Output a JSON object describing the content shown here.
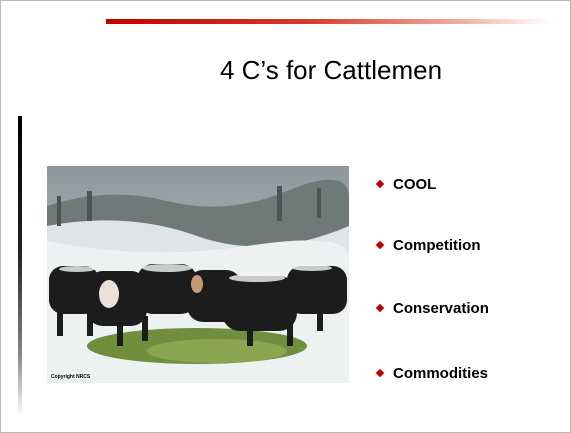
{
  "slide": {
    "title": "4 C’s for Cattlemen",
    "image_caption": "Copyright NRCS",
    "bullets": [
      "COOL",
      "Competition",
      "Conservation",
      "Commodities"
    ]
  }
}
